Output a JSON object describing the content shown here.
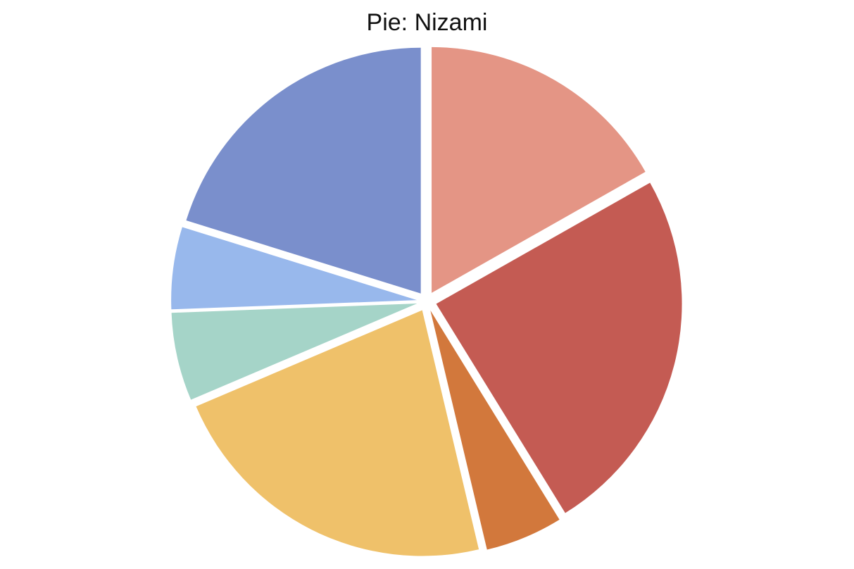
{
  "chart_data": {
    "type": "pie",
    "title": "Pie: Nizami",
    "start_angle_deg": 0,
    "direction": "clockwise",
    "slices": [
      {
        "value": 16.8,
        "color": "#E49585"
      },
      {
        "value": 24.4,
        "color": "#C45B53"
      },
      {
        "value": 5.1,
        "color": "#D2783C"
      },
      {
        "value": 22.3,
        "color": "#EFC16A"
      },
      {
        "value": 5.8,
        "color": "#A5D4C8"
      },
      {
        "value": 5.4,
        "color": "#98B8EC"
      },
      {
        "value": 20.2,
        "color": "#7A8FCC"
      }
    ]
  }
}
